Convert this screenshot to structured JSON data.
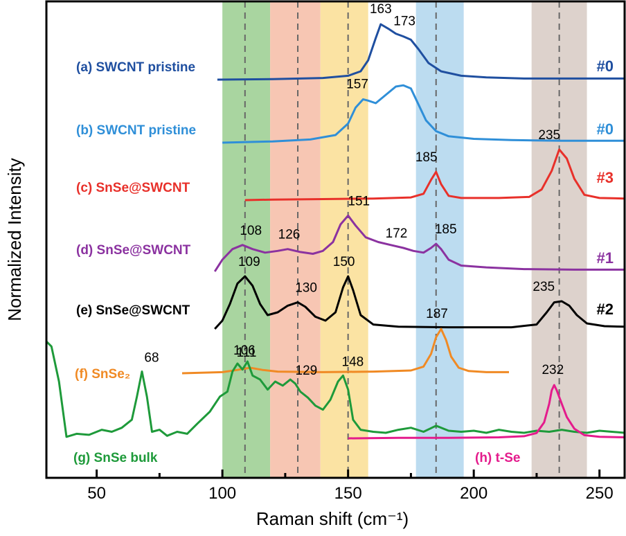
{
  "chart_data": {
    "type": "line",
    "xlabel": "Raman shift (cm⁻¹)",
    "ylabel": "Normalized Intensity",
    "xlim": [
      30,
      260
    ],
    "xticks": [
      50,
      100,
      150,
      200,
      250
    ],
    "grid": false,
    "bands": [
      {
        "from": 100,
        "to": 119,
        "color": "#a9d5a0"
      },
      {
        "from": 119,
        "to": 139,
        "color": "#f7c6b3"
      },
      {
        "from": 139,
        "to": 158,
        "color": "#fbe3a3"
      },
      {
        "from": 177,
        "to": 196,
        "color": "#bcdcf0"
      },
      {
        "from": 223,
        "to": 245,
        "color": "#ddd2cc"
      }
    ],
    "reference_lines": [
      109,
      130,
      150,
      185,
      234
    ],
    "series": [
      {
        "name": "(a) SWCNT pristine",
        "tag": "#0",
        "color": "#1f4fa0",
        "peak_labels": [
          {
            "x": 163,
            "text": "163"
          },
          {
            "x": 173,
            "text": "173"
          }
        ],
        "x": [
          98,
          120,
          140,
          150,
          155,
          158,
          161,
          163,
          166,
          169,
          172,
          175,
          178,
          182,
          187,
          195,
          205,
          220,
          240,
          260
        ],
        "y": [
          0.0,
          0.01,
          0.03,
          0.07,
          0.15,
          0.35,
          0.75,
          1.0,
          0.92,
          0.83,
          0.78,
          0.72,
          0.55,
          0.3,
          0.15,
          0.07,
          0.04,
          0.02,
          0.02,
          0.02
        ]
      },
      {
        "name": "(b) SWCNT pristine",
        "tag": "#0",
        "color": "#2f8fd8",
        "peak_labels": [
          {
            "x": 157,
            "text": "157"
          }
        ],
        "x": [
          100,
          120,
          135,
          145,
          150,
          153,
          156,
          158,
          161,
          165,
          169,
          172,
          175,
          178,
          181,
          185,
          190,
          200,
          215,
          235,
          260
        ],
        "y": [
          0.0,
          0.02,
          0.05,
          0.12,
          0.3,
          0.55,
          0.68,
          0.66,
          0.62,
          0.75,
          0.88,
          0.9,
          0.85,
          0.6,
          0.35,
          0.18,
          0.1,
          0.06,
          0.04,
          0.03,
          0.03
        ]
      },
      {
        "name": "(c) SnSe@SWCNT",
        "tag": "#3",
        "color": "#e8302a",
        "peak_labels": [
          {
            "x": 185,
            "text": "185"
          },
          {
            "x": 235,
            "text": "235"
          }
        ],
        "x": [
          109,
          120,
          140,
          160,
          175,
          180,
          183,
          185,
          187,
          190,
          195,
          210,
          222,
          227,
          231,
          234,
          237,
          240,
          244,
          250,
          260
        ],
        "y": [
          0.0,
          0.01,
          0.02,
          0.03,
          0.05,
          0.12,
          0.38,
          0.53,
          0.3,
          0.08,
          0.04,
          0.04,
          0.06,
          0.2,
          0.55,
          0.95,
          0.78,
          0.4,
          0.1,
          0.04,
          0.03
        ]
      },
      {
        "name": "(d) SnSe@SWCNT",
        "tag": "#1",
        "color": "#8b32a0",
        "peak_labels": [
          {
            "x": 108,
            "text": "108"
          },
          {
            "x": 126,
            "text": "126"
          },
          {
            "x": 151,
            "text": "151"
          },
          {
            "x": 172,
            "text": "172"
          },
          {
            "x": 185,
            "text": "185"
          }
        ],
        "x": [
          97,
          100,
          104,
          108,
          112,
          117,
          122,
          126,
          131,
          136,
          140,
          144,
          147,
          150,
          153,
          157,
          162,
          167,
          172,
          176,
          180,
          183,
          185,
          187,
          190,
          195,
          205,
          220,
          240,
          260
        ],
        "y": [
          0.0,
          0.2,
          0.38,
          0.45,
          0.38,
          0.32,
          0.35,
          0.38,
          0.33,
          0.3,
          0.35,
          0.5,
          0.8,
          0.95,
          0.78,
          0.58,
          0.5,
          0.45,
          0.4,
          0.35,
          0.32,
          0.4,
          0.47,
          0.38,
          0.2,
          0.1,
          0.07,
          0.04,
          0.03,
          0.03
        ]
      },
      {
        "name": "(e) SnSe@SWCNT",
        "tag": "#2",
        "color": "#000000",
        "peak_labels": [
          {
            "x": 109,
            "text": "109"
          },
          {
            "x": 130,
            "text": "130"
          },
          {
            "x": 150,
            "text": "150"
          },
          {
            "x": 235,
            "text": "235"
          }
        ],
        "x": [
          97,
          100,
          103,
          106,
          109,
          112,
          115,
          118,
          122,
          126,
          130,
          133,
          137,
          141,
          145,
          148,
          150,
          152,
          155,
          160,
          170,
          190,
          215,
          225,
          229,
          232,
          235,
          238,
          241,
          245,
          252,
          260
        ],
        "y": [
          0.0,
          0.15,
          0.45,
          0.82,
          0.95,
          0.78,
          0.45,
          0.25,
          0.3,
          0.42,
          0.48,
          0.4,
          0.22,
          0.15,
          0.3,
          0.75,
          0.95,
          0.7,
          0.25,
          0.08,
          0.04,
          0.03,
          0.03,
          0.08,
          0.3,
          0.48,
          0.5,
          0.42,
          0.25,
          0.1,
          0.05,
          0.04
        ]
      },
      {
        "name": "(f) SnSe₂",
        "tag": "",
        "color": "#f08a24",
        "peak_labels": [
          {
            "x": 111,
            "text": "111"
          },
          {
            "x": 187,
            "text": "187"
          }
        ],
        "x": [
          84,
          100,
          106,
          111,
          116,
          122,
          140,
          160,
          175,
          180,
          183,
          185,
          187,
          189,
          191,
          194,
          198,
          205,
          214
        ],
        "y": [
          0.0,
          0.02,
          0.06,
          0.1,
          0.06,
          0.03,
          0.02,
          0.03,
          0.05,
          0.12,
          0.35,
          0.65,
          0.8,
          0.6,
          0.3,
          0.1,
          0.04,
          0.02,
          0.02
        ]
      },
      {
        "name": "(g) SnSe bulk",
        "tag": "",
        "color": "#1e9a3a",
        "peak_labels": [
          {
            "x": 68,
            "text": "68"
          },
          {
            "x": 106,
            "text": "106"
          },
          {
            "x": 129,
            "text": "129"
          },
          {
            "x": 148,
            "text": "148"
          }
        ],
        "x": [
          30,
          32,
          35,
          38,
          42,
          47,
          52,
          56,
          60,
          64,
          66,
          68,
          70,
          72,
          75,
          78,
          82,
          86,
          90,
          95,
          99,
          102,
          104,
          106,
          108,
          110,
          112,
          115,
          118,
          121,
          124,
          127,
          129,
          131,
          134,
          137,
          140,
          143,
          146,
          148,
          150,
          152,
          155,
          160,
          165,
          170,
          175,
          180,
          185,
          190,
          195,
          200,
          205,
          210,
          215,
          220,
          225,
          230,
          235,
          240,
          245,
          250,
          255,
          260
        ],
        "y": [
          1.0,
          0.95,
          0.6,
          0.05,
          0.08,
          0.07,
          0.12,
          0.1,
          0.14,
          0.22,
          0.45,
          0.7,
          0.45,
          0.1,
          0.12,
          0.06,
          0.1,
          0.08,
          0.18,
          0.3,
          0.45,
          0.5,
          0.7,
          0.78,
          0.72,
          0.8,
          0.66,
          0.62,
          0.52,
          0.6,
          0.56,
          0.62,
          0.58,
          0.5,
          0.44,
          0.36,
          0.32,
          0.42,
          0.6,
          0.66,
          0.52,
          0.22,
          0.12,
          0.1,
          0.09,
          0.12,
          0.14,
          0.1,
          0.16,
          0.11,
          0.1,
          0.11,
          0.09,
          0.12,
          0.1,
          0.09,
          0.11,
          0.1,
          0.12,
          0.1,
          0.09,
          0.11,
          0.1,
          0.09
        ]
      },
      {
        "name": "(h) t-Se",
        "tag": "",
        "color": "#e41b8c",
        "peak_labels": [
          {
            "x": 232,
            "text": "232"
          }
        ],
        "x": [
          150,
          170,
          190,
          210,
          220,
          225,
          228,
          230,
          231,
          232,
          233,
          235,
          237,
          240,
          244,
          250,
          260
        ],
        "y": [
          0.0,
          0.01,
          0.01,
          0.02,
          0.04,
          0.1,
          0.3,
          0.65,
          0.9,
          1.0,
          0.9,
          0.65,
          0.4,
          0.18,
          0.06,
          0.03,
          0.02
        ]
      }
    ]
  }
}
